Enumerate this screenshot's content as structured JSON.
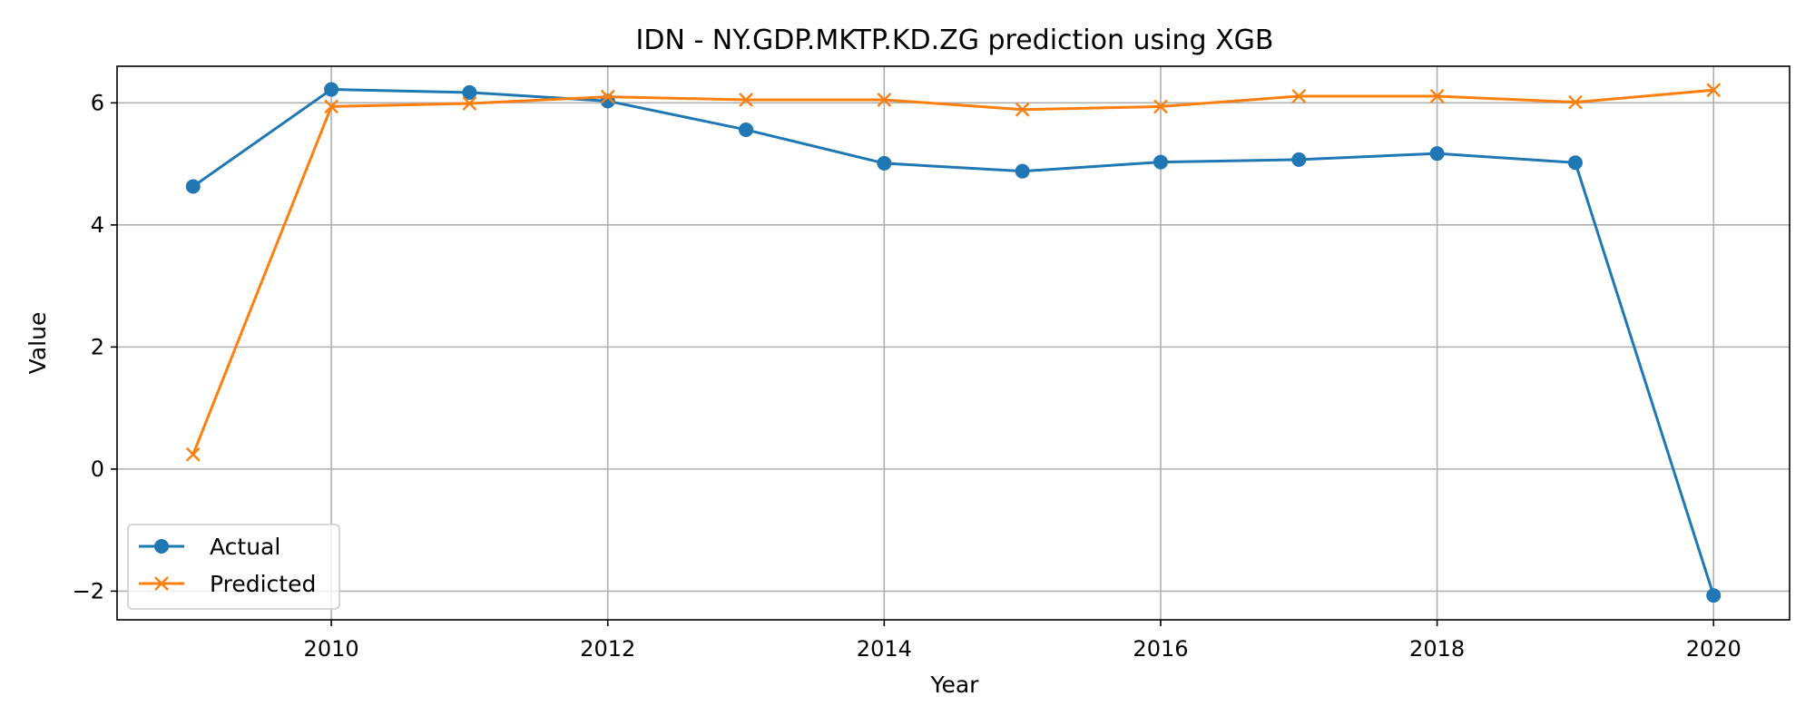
{
  "chart_data": {
    "type": "line",
    "title": "IDN - NY.GDP.MKTP.KD.ZG prediction using XGB",
    "xlabel": "Year",
    "ylabel": "Value",
    "x": [
      2009,
      2010,
      2011,
      2012,
      2013,
      2014,
      2015,
      2016,
      2017,
      2018,
      2019,
      2020
    ],
    "xlim": [
      2008.45,
      2020.55
    ],
    "ylim": [
      -2.47,
      6.6
    ],
    "xticks": [
      2010,
      2012,
      2014,
      2016,
      2018,
      2020
    ],
    "yticks": [
      -2,
      0,
      2,
      4,
      6
    ],
    "ytick_labels": [
      "−2",
      "0",
      "2",
      "4",
      "6"
    ],
    "grid": true,
    "legend_position": "lower-left",
    "series": [
      {
        "name": "Actual",
        "color": "#1f77b4",
        "marker": "circle",
        "values": [
          4.63,
          6.22,
          6.17,
          6.03,
          5.56,
          5.01,
          4.88,
          5.03,
          5.07,
          5.17,
          5.02,
          -2.07
        ]
      },
      {
        "name": "Predicted",
        "color": "#ff7f0e",
        "marker": "x",
        "values": [
          0.24,
          5.94,
          5.99,
          6.1,
          6.05,
          6.05,
          5.89,
          5.94,
          6.11,
          6.11,
          6.01,
          6.21
        ]
      }
    ]
  }
}
